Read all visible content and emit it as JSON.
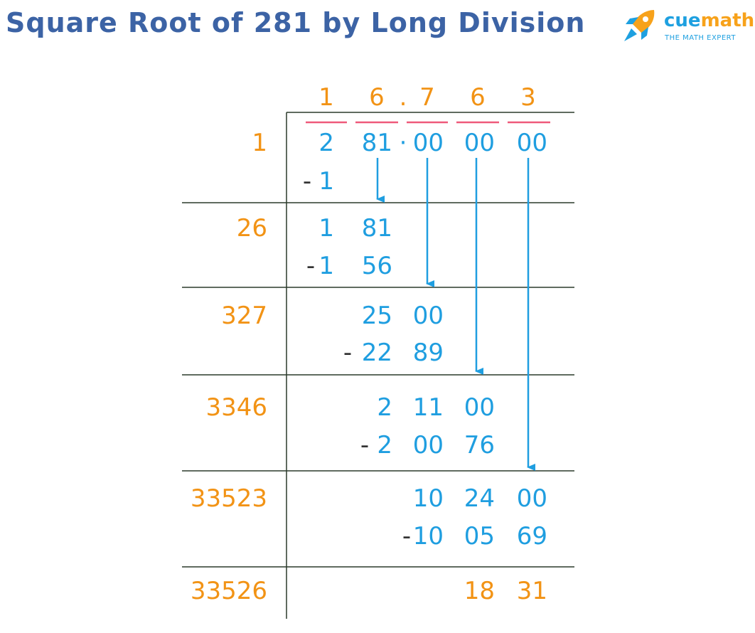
{
  "title": "Square Root of 281 by Long Division",
  "logo": {
    "name_part1": "cue",
    "name_part2": "math",
    "tagline": "THE MATH EXPERT"
  },
  "colors": {
    "title": "#3c63a5",
    "quotient": "#f29315",
    "work": "#1f9ee0",
    "minus": "#333333",
    "bar": "#ef5a7a",
    "line": "#2b3a2b"
  },
  "quotient": {
    "digits": [
      "1",
      "6",
      "7",
      "6",
      "3"
    ],
    "point": "."
  },
  "dividend": {
    "groups": [
      "2",
      "81",
      "00",
      "00",
      "00"
    ],
    "point": "·"
  },
  "steps": [
    {
      "divisor": "1",
      "dividend": [
        "2",
        "81",
        "00",
        "00",
        "00"
      ],
      "minus": "-",
      "subtract": [
        "1"
      ]
    },
    {
      "divisor": "26",
      "dividend": [
        "1",
        "81"
      ],
      "minus": "-",
      "subtract": [
        "1",
        "56"
      ]
    },
    {
      "divisor": "327",
      "dividend": [
        "25",
        "00"
      ],
      "minus": "-",
      "subtract": [
        "22",
        "89"
      ]
    },
    {
      "divisor": "3346",
      "dividend": [
        "2",
        "11",
        "00"
      ],
      "minus": "-",
      "subtract": [
        "2",
        "00",
        "76"
      ]
    },
    {
      "divisor": "33523",
      "dividend": [
        "10",
        "24",
        "00"
      ],
      "minus": "-",
      "subtract": [
        "10",
        "05",
        "69"
      ]
    },
    {
      "divisor": "33526",
      "remainder": [
        "18",
        "31"
      ]
    }
  ]
}
